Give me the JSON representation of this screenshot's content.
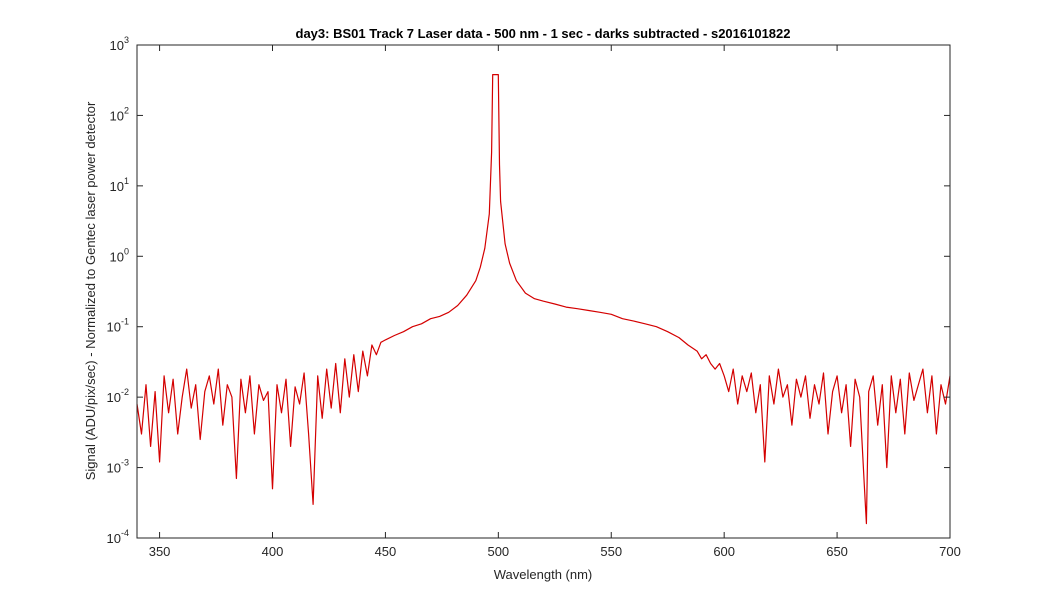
{
  "chart_data": {
    "type": "line",
    "title": "day3: BS01  Track 7 Laser data - 500 nm - 1 sec - darks subtracted - s2016101822",
    "xlabel": "Wavelength (nm)",
    "ylabel": "Signal (ADU/pix/sec) - Normalized to Gentec laser power detector",
    "xlim": [
      340,
      700
    ],
    "ylim": [
      0.0001,
      1000
    ],
    "yscale": "log",
    "x_ticks": [
      350,
      400,
      450,
      500,
      550,
      600,
      650,
      700
    ],
    "y_tick_exponents": [
      -4,
      -3,
      -2,
      -1,
      0,
      1,
      2,
      3
    ],
    "y_tick_base": "10",
    "grid": false,
    "line_color": "#d40000",
    "series": [
      {
        "points": [
          [
            340,
            0.008
          ],
          [
            342,
            0.003
          ],
          [
            344,
            0.015
          ],
          [
            346,
            0.002
          ],
          [
            348,
            0.012
          ],
          [
            350,
            0.0012
          ],
          [
            352,
            0.02
          ],
          [
            354,
            0.006
          ],
          [
            356,
            0.018
          ],
          [
            358,
            0.003
          ],
          [
            360,
            0.01
          ],
          [
            362,
            0.025
          ],
          [
            364,
            0.007
          ],
          [
            366,
            0.015
          ],
          [
            368,
            0.0025
          ],
          [
            370,
            0.012
          ],
          [
            372,
            0.02
          ],
          [
            374,
            0.008
          ],
          [
            376,
            0.025
          ],
          [
            378,
            0.004
          ],
          [
            380,
            0.015
          ],
          [
            382,
            0.01
          ],
          [
            384,
            0.0007
          ],
          [
            386,
            0.018
          ],
          [
            388,
            0.006
          ],
          [
            390,
            0.02
          ],
          [
            392,
            0.003
          ],
          [
            394,
            0.015
          ],
          [
            396,
            0.009
          ],
          [
            398,
            0.012
          ],
          [
            400,
            0.0005
          ],
          [
            402,
            0.015
          ],
          [
            404,
            0.006
          ],
          [
            406,
            0.018
          ],
          [
            408,
            0.002
          ],
          [
            410,
            0.014
          ],
          [
            412,
            0.008
          ],
          [
            414,
            0.022
          ],
          [
            416,
            0.003
          ],
          [
            418,
            0.0003
          ],
          [
            420,
            0.02
          ],
          [
            422,
            0.005
          ],
          [
            424,
            0.025
          ],
          [
            426,
            0.007
          ],
          [
            428,
            0.03
          ],
          [
            430,
            0.006
          ],
          [
            432,
            0.035
          ],
          [
            434,
            0.01
          ],
          [
            436,
            0.04
          ],
          [
            438,
            0.012
          ],
          [
            440,
            0.045
          ],
          [
            442,
            0.02
          ],
          [
            444,
            0.055
          ],
          [
            446,
            0.04
          ],
          [
            448,
            0.06
          ],
          [
            450,
            0.065
          ],
          [
            454,
            0.075
          ],
          [
            458,
            0.085
          ],
          [
            462,
            0.1
          ],
          [
            466,
            0.11
          ],
          [
            470,
            0.13
          ],
          [
            474,
            0.14
          ],
          [
            478,
            0.16
          ],
          [
            482,
            0.2
          ],
          [
            486,
            0.28
          ],
          [
            490,
            0.45
          ],
          [
            492,
            0.7
          ],
          [
            494,
            1.3
          ],
          [
            496,
            4
          ],
          [
            497,
            30
          ],
          [
            497.5,
            380
          ],
          [
            500,
            380
          ],
          [
            500.5,
            20
          ],
          [
            501,
            6
          ],
          [
            503,
            1.5
          ],
          [
            505,
            0.8
          ],
          [
            508,
            0.45
          ],
          [
            512,
            0.3
          ],
          [
            516,
            0.25
          ],
          [
            520,
            0.23
          ],
          [
            525,
            0.21
          ],
          [
            530,
            0.19
          ],
          [
            535,
            0.18
          ],
          [
            540,
            0.17
          ],
          [
            545,
            0.16
          ],
          [
            550,
            0.15
          ],
          [
            555,
            0.13
          ],
          [
            560,
            0.12
          ],
          [
            565,
            0.11
          ],
          [
            570,
            0.1
          ],
          [
            575,
            0.085
          ],
          [
            580,
            0.07
          ],
          [
            584,
            0.055
          ],
          [
            588,
            0.045
          ],
          [
            590,
            0.035
          ],
          [
            592,
            0.04
          ],
          [
            594,
            0.03
          ],
          [
            596,
            0.025
          ],
          [
            598,
            0.03
          ],
          [
            600,
            0.02
          ],
          [
            602,
            0.012
          ],
          [
            604,
            0.025
          ],
          [
            606,
            0.008
          ],
          [
            608,
            0.02
          ],
          [
            610,
            0.012
          ],
          [
            612,
            0.022
          ],
          [
            614,
            0.006
          ],
          [
            616,
            0.015
          ],
          [
            618,
            0.0012
          ],
          [
            620,
            0.02
          ],
          [
            622,
            0.008
          ],
          [
            624,
            0.025
          ],
          [
            626,
            0.01
          ],
          [
            628,
            0.015
          ],
          [
            630,
            0.004
          ],
          [
            632,
            0.018
          ],
          [
            634,
            0.01
          ],
          [
            636,
            0.02
          ],
          [
            638,
            0.005
          ],
          [
            640,
            0.015
          ],
          [
            642,
            0.008
          ],
          [
            644,
            0.022
          ],
          [
            646,
            0.003
          ],
          [
            648,
            0.012
          ],
          [
            650,
            0.02
          ],
          [
            652,
            0.006
          ],
          [
            654,
            0.015
          ],
          [
            656,
            0.002
          ],
          [
            658,
            0.018
          ],
          [
            660,
            0.01
          ],
          [
            662,
            0.0006
          ],
          [
            663,
            0.00016
          ],
          [
            664,
            0.012
          ],
          [
            666,
            0.02
          ],
          [
            668,
            0.004
          ],
          [
            670,
            0.015
          ],
          [
            672,
            0.001
          ],
          [
            674,
            0.02
          ],
          [
            676,
            0.006
          ],
          [
            678,
            0.018
          ],
          [
            680,
            0.003
          ],
          [
            682,
            0.022
          ],
          [
            684,
            0.009
          ],
          [
            686,
            0.015
          ],
          [
            688,
            0.025
          ],
          [
            690,
            0.006
          ],
          [
            692,
            0.02
          ],
          [
            694,
            0.003
          ],
          [
            696,
            0.015
          ],
          [
            698,
            0.008
          ],
          [
            700,
            0.02
          ]
        ]
      }
    ]
  }
}
